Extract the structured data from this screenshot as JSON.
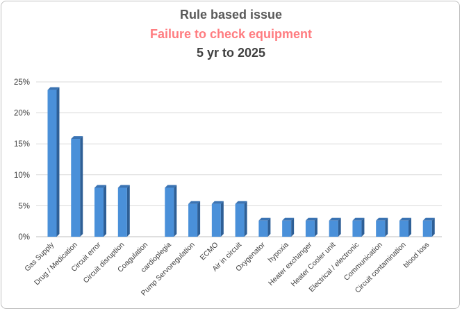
{
  "chart_data": {
    "type": "bar",
    "title": "Rule based issue",
    "subtitle": "Failure to check equipment",
    "period": "5 yr  to 2025",
    "xlabel": "",
    "ylabel": "",
    "ylim": [
      0,
      0.25
    ],
    "y_ticks": [
      0,
      0.05,
      0.1,
      0.15,
      0.2,
      0.25
    ],
    "y_tick_labels": [
      "0%",
      "5%",
      "10%",
      "15%",
      "20%",
      "25%"
    ],
    "grid": true,
    "legend": "none",
    "bar_color": "#4a90d9",
    "bar_side_color": "#2e5f96",
    "bar_top_color": "#3a73b3",
    "categories": [
      "Gas Supply",
      "Drug / Medication",
      "Circuit error",
      "Circuit disruption",
      "Coagulation",
      "cardioplegia",
      "Pump Servoregulation",
      "ECMO",
      "Air in circuit",
      "Oxygenator",
      "hypoxia",
      "Heater exchanger",
      "Heater Cooler unit",
      "Electrical / electronic",
      "Communication",
      "Circuit contamination",
      "blood loss"
    ],
    "values": [
      0.237,
      0.158,
      0.079,
      0.079,
      0,
      0.079,
      0.053,
      0.053,
      0.053,
      0.026,
      0.026,
      0.026,
      0.026,
      0.026,
      0.026,
      0.026,
      0.026
    ]
  }
}
